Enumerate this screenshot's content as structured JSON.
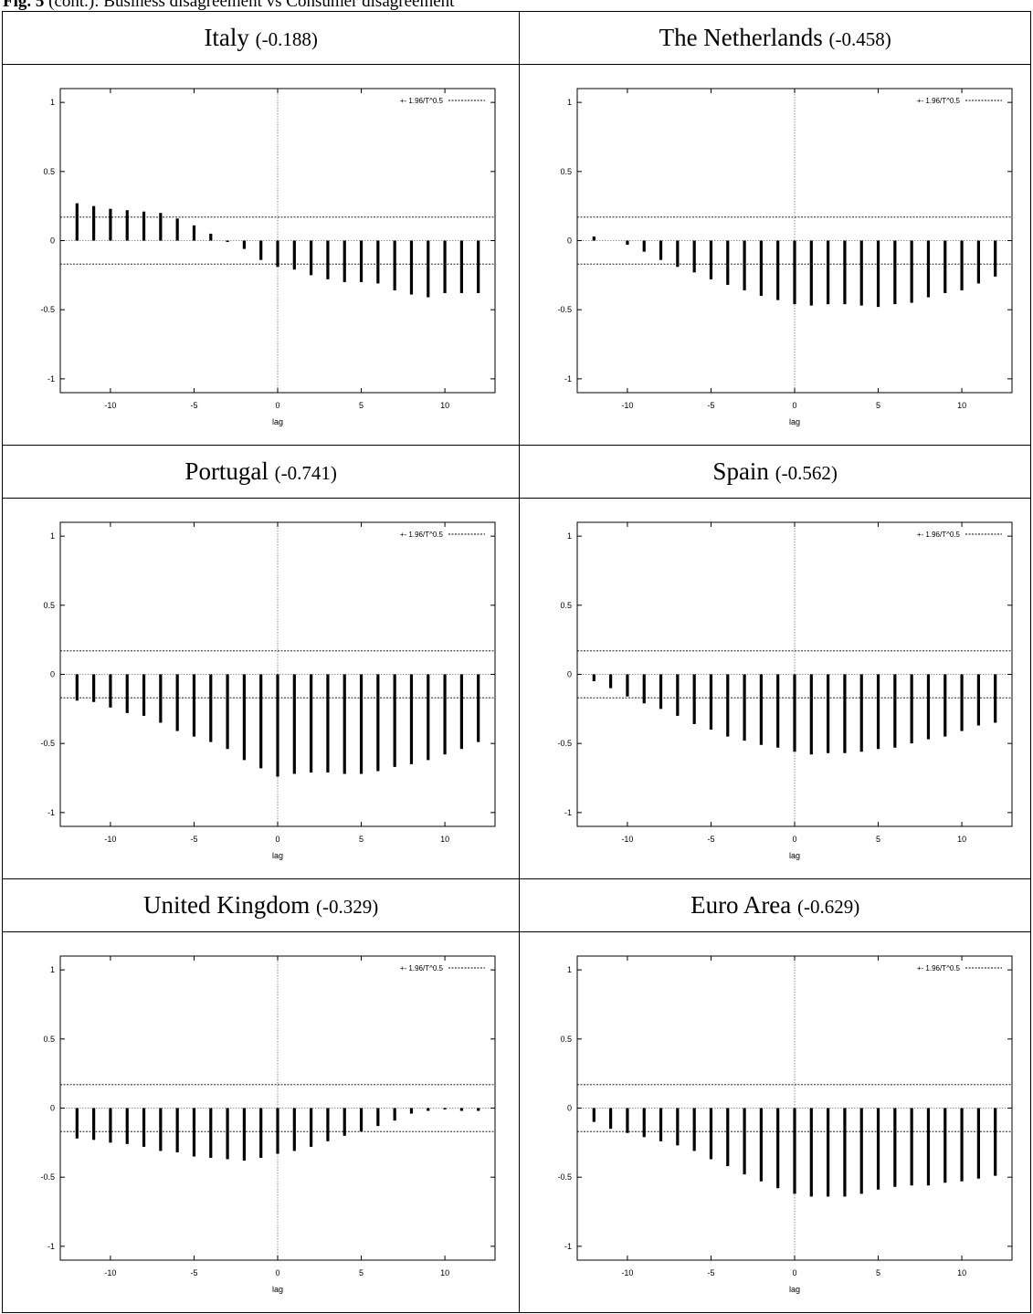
{
  "figure": {
    "label": "Fig. 5",
    "caption": "(cont.): Business disagreement vs Consumer disagreement"
  },
  "legend_label": "+- 1.96/T^0.5",
  "colors": {
    "bars": "#000000",
    "frame": "#000000",
    "axis_dotted": "#777777"
  },
  "chart_data": [
    {
      "type": "bar",
      "title": "Italy",
      "correlation": "(-0.188)",
      "xlabel": "lag",
      "xlim": [
        -13,
        13
      ],
      "ylim": [
        -1.1,
        1.1
      ],
      "xticks": [
        -10,
        -5,
        0,
        5,
        10
      ],
      "yticks": [
        -1,
        -0.5,
        0,
        0.5,
        1
      ],
      "x": [
        -12,
        -11,
        -10,
        -9,
        -8,
        -7,
        -6,
        -5,
        -4,
        -3,
        -2,
        -1,
        0,
        1,
        2,
        3,
        4,
        5,
        6,
        7,
        8,
        9,
        10,
        11,
        12
      ],
      "values": [
        0.27,
        0.25,
        0.23,
        0.22,
        0.21,
        0.2,
        0.16,
        0.11,
        0.05,
        -0.01,
        -0.06,
        -0.14,
        -0.19,
        -0.21,
        -0.25,
        -0.28,
        -0.3,
        -0.3,
        -0.31,
        -0.36,
        -0.39,
        -0.41,
        -0.38,
        -0.38,
        -0.38
      ],
      "band": 0.17
    },
    {
      "type": "bar",
      "title": "The Netherlands",
      "correlation": "(-0.458)",
      "xlabel": "lag",
      "xlim": [
        -13,
        13
      ],
      "ylim": [
        -1.1,
        1.1
      ],
      "xticks": [
        -10,
        -5,
        0,
        5,
        10
      ],
      "yticks": [
        -1,
        -0.5,
        0,
        0.5,
        1
      ],
      "x": [
        -12,
        -11,
        -10,
        -9,
        -8,
        -7,
        -6,
        -5,
        -4,
        -3,
        -2,
        -1,
        0,
        1,
        2,
        3,
        4,
        5,
        6,
        7,
        8,
        9,
        10,
        11,
        12
      ],
      "values": [
        0.03,
        0.0,
        -0.03,
        -0.08,
        -0.14,
        -0.19,
        -0.23,
        -0.28,
        -0.32,
        -0.36,
        -0.4,
        -0.43,
        -0.46,
        -0.47,
        -0.46,
        -0.46,
        -0.47,
        -0.48,
        -0.46,
        -0.45,
        -0.41,
        -0.38,
        -0.36,
        -0.31,
        -0.26
      ],
      "band": 0.17
    },
    {
      "type": "bar",
      "title": "Portugal",
      "correlation": "(-0.741)",
      "xlabel": "lag",
      "xlim": [
        -13,
        13
      ],
      "ylim": [
        -1.1,
        1.1
      ],
      "xticks": [
        -10,
        -5,
        0,
        5,
        10
      ],
      "yticks": [
        -1,
        -0.5,
        0,
        0.5,
        1
      ],
      "x": [
        -12,
        -11,
        -10,
        -9,
        -8,
        -7,
        -6,
        -5,
        -4,
        -3,
        -2,
        -1,
        0,
        1,
        2,
        3,
        4,
        5,
        6,
        7,
        8,
        9,
        10,
        11,
        12
      ],
      "values": [
        -0.19,
        -0.2,
        -0.24,
        -0.28,
        -0.3,
        -0.35,
        -0.41,
        -0.45,
        -0.49,
        -0.54,
        -0.62,
        -0.68,
        -0.74,
        -0.72,
        -0.71,
        -0.71,
        -0.72,
        -0.72,
        -0.7,
        -0.67,
        -0.65,
        -0.62,
        -0.58,
        -0.54,
        -0.49
      ],
      "band": 0.17
    },
    {
      "type": "bar",
      "title": "Spain",
      "correlation": "(-0.562)",
      "xlabel": "lag",
      "xlim": [
        -13,
        13
      ],
      "ylim": [
        -1.1,
        1.1
      ],
      "xticks": [
        -10,
        -5,
        0,
        5,
        10
      ],
      "yticks": [
        -1,
        -0.5,
        0,
        0.5,
        1
      ],
      "x": [
        -12,
        -11,
        -10,
        -9,
        -8,
        -7,
        -6,
        -5,
        -4,
        -3,
        -2,
        -1,
        0,
        1,
        2,
        3,
        4,
        5,
        6,
        7,
        8,
        9,
        10,
        11,
        12
      ],
      "values": [
        -0.05,
        -0.1,
        -0.16,
        -0.21,
        -0.25,
        -0.3,
        -0.36,
        -0.4,
        -0.45,
        -0.48,
        -0.51,
        -0.53,
        -0.56,
        -0.58,
        -0.57,
        -0.57,
        -0.56,
        -0.54,
        -0.53,
        -0.5,
        -0.47,
        -0.45,
        -0.41,
        -0.37,
        -0.35
      ],
      "band": 0.17
    },
    {
      "type": "bar",
      "title": "United Kingdom",
      "correlation": "(-0.329)",
      "xlabel": "lag",
      "xlim": [
        -13,
        13
      ],
      "ylim": [
        -1.1,
        1.1
      ],
      "xticks": [
        -10,
        -5,
        0,
        5,
        10
      ],
      "yticks": [
        -1,
        -0.5,
        0,
        0.5,
        1
      ],
      "x": [
        -12,
        -11,
        -10,
        -9,
        -8,
        -7,
        -6,
        -5,
        -4,
        -3,
        -2,
        -1,
        0,
        1,
        2,
        3,
        4,
        5,
        6,
        7,
        8,
        9,
        10,
        11,
        12
      ],
      "values": [
        -0.22,
        -0.23,
        -0.25,
        -0.26,
        -0.28,
        -0.31,
        -0.32,
        -0.35,
        -0.36,
        -0.37,
        -0.38,
        -0.36,
        -0.33,
        -0.31,
        -0.28,
        -0.24,
        -0.2,
        -0.17,
        -0.13,
        -0.09,
        -0.04,
        -0.02,
        -0.01,
        -0.02,
        -0.02
      ],
      "band": 0.17
    },
    {
      "type": "bar",
      "title": "Euro Area",
      "correlation": "(-0.629)",
      "xlabel": "lag",
      "xlim": [
        -13,
        13
      ],
      "ylim": [
        -1.1,
        1.1
      ],
      "xticks": [
        -10,
        -5,
        0,
        5,
        10
      ],
      "yticks": [
        -1,
        -0.5,
        0,
        0.5,
        1
      ],
      "x": [
        -12,
        -11,
        -10,
        -9,
        -8,
        -7,
        -6,
        -5,
        -4,
        -3,
        -2,
        -1,
        0,
        1,
        2,
        3,
        4,
        5,
        6,
        7,
        8,
        9,
        10,
        11,
        12
      ],
      "values": [
        -0.1,
        -0.15,
        -0.18,
        -0.21,
        -0.24,
        -0.27,
        -0.31,
        -0.37,
        -0.42,
        -0.48,
        -0.53,
        -0.58,
        -0.62,
        -0.64,
        -0.64,
        -0.64,
        -0.62,
        -0.59,
        -0.57,
        -0.56,
        -0.56,
        -0.54,
        -0.53,
        -0.51,
        -0.49
      ],
      "band": 0.17
    }
  ]
}
